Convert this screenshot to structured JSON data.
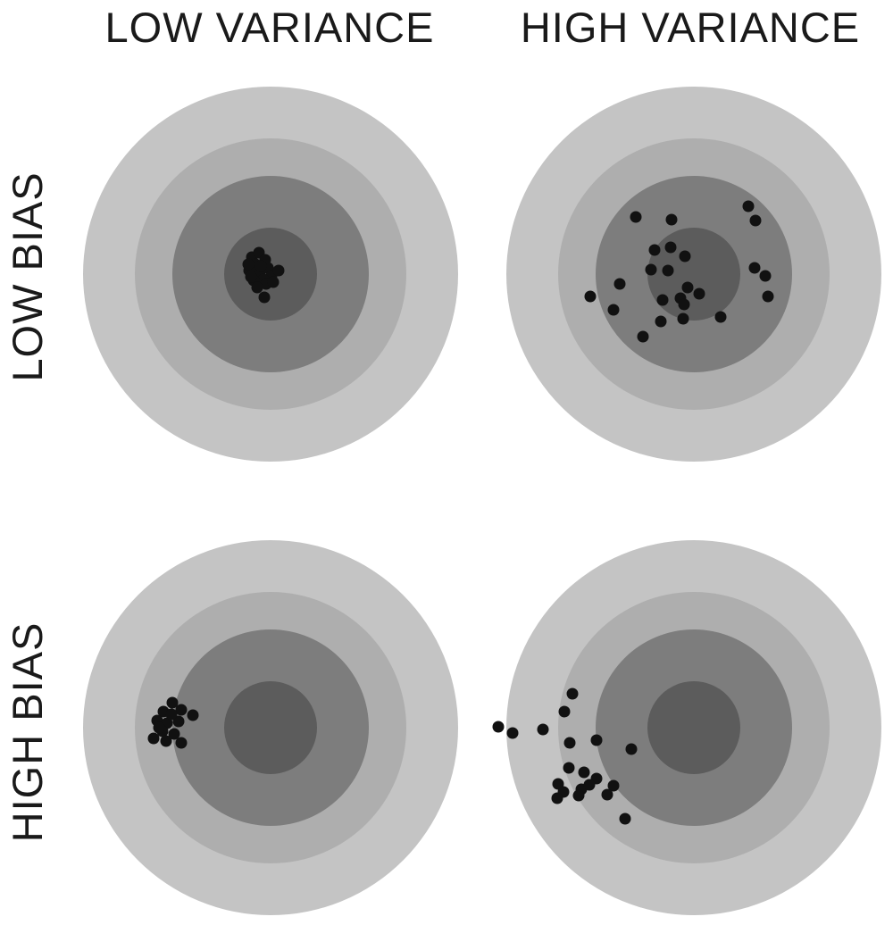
{
  "labels": {
    "col_low_variance": "LOW VARIANCE",
    "col_high_variance": "HIGH VARIANCE",
    "row_low_bias": "LOW BIAS",
    "row_high_bias": "HIGH BIAS"
  },
  "colors": {
    "ring_outer": "#c4c4c4",
    "ring_second": "#aeaeae",
    "ring_third": "#7d7d7d",
    "bullseye": "#5c5c5c",
    "shot": "#111111",
    "background": "#ffffff"
  }
}
